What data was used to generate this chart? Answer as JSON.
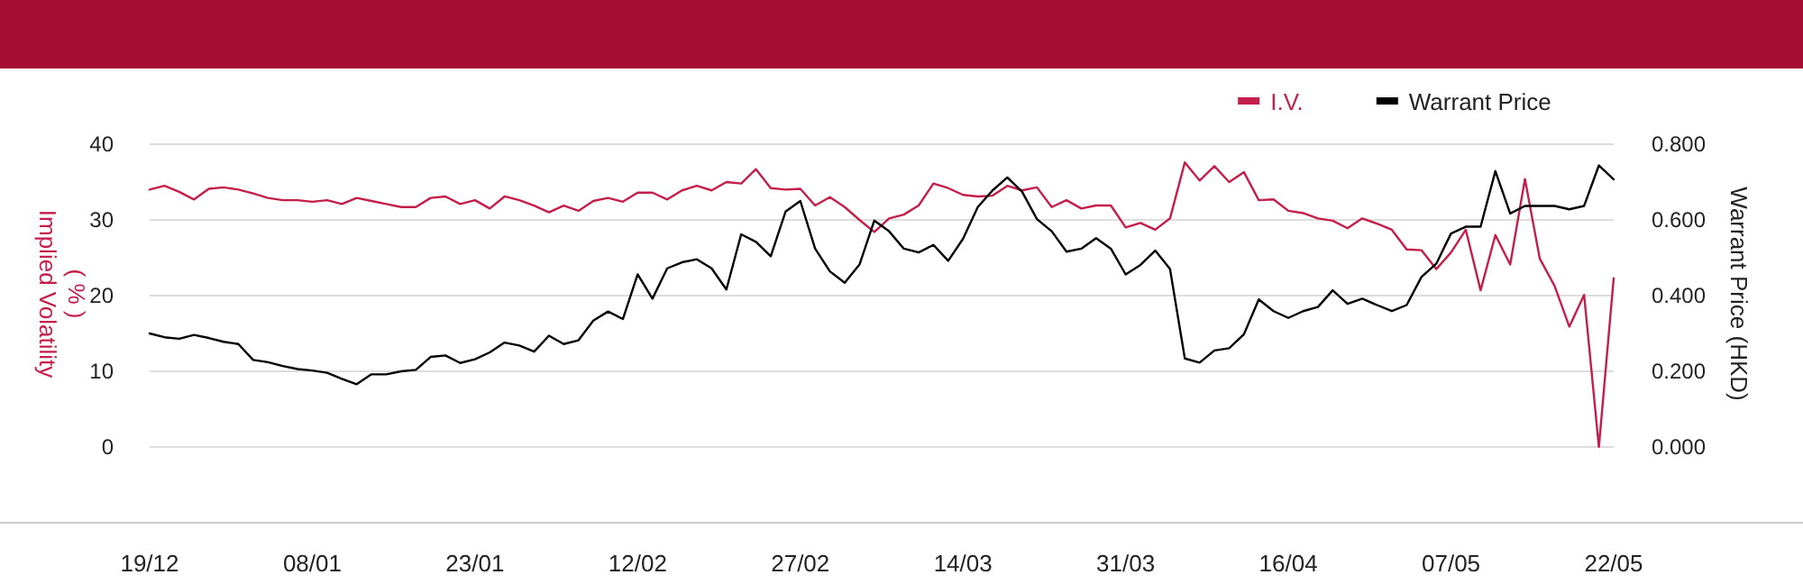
{
  "chart_data": {
    "type": "line",
    "categories": [
      "19/12",
      null,
      null,
      null,
      null,
      null,
      null,
      null,
      null,
      null,
      null,
      "08/01",
      null,
      null,
      null,
      null,
      null,
      null,
      null,
      null,
      null,
      null,
      "23/01",
      null,
      null,
      null,
      null,
      null,
      null,
      null,
      null,
      null,
      null,
      "12/02",
      null,
      null,
      null,
      null,
      null,
      null,
      null,
      null,
      null,
      null,
      "27/02",
      null,
      null,
      null,
      null,
      null,
      null,
      null,
      null,
      null,
      null,
      "14/03",
      null,
      null,
      null,
      null,
      null,
      null,
      null,
      null,
      null,
      null,
      "31/03",
      null,
      null,
      null,
      null,
      null,
      null,
      null,
      null,
      null,
      null,
      "16/04",
      null,
      null,
      null,
      null,
      null,
      null,
      null,
      null,
      null,
      null,
      "07/05",
      null,
      null,
      null,
      null,
      null,
      null,
      null,
      null,
      null,
      null,
      "22/05"
    ],
    "series": [
      {
        "name": "I.V.",
        "color": "#c41e4a",
        "values": [
          34.0,
          34.5,
          33.7,
          32.7,
          34.1,
          34.3,
          34.0,
          33.5,
          32.9,
          32.6,
          32.6,
          32.4,
          32.6,
          32.1,
          32.9,
          32.5,
          32.1,
          31.7,
          31.7,
          32.9,
          33.1,
          32.1,
          32.6,
          31.5,
          33.1,
          32.6,
          31.9,
          31.0,
          31.9,
          31.2,
          32.5,
          32.9,
          32.4,
          33.6,
          33.6,
          32.7,
          33.9,
          34.5,
          33.9,
          35.0,
          34.8,
          36.7,
          34.2,
          34.0,
          34.1,
          31.9,
          33.0,
          31.7,
          30.0,
          28.4,
          30.2,
          30.7,
          31.9,
          34.8,
          34.2,
          33.3,
          33.1,
          33.2,
          34.5,
          33.9,
          34.3,
          31.7,
          32.6,
          31.5,
          31.9,
          31.9,
          29.0,
          29.6,
          28.7,
          30.2,
          37.6,
          35.2,
          37.1,
          35.0,
          36.3,
          32.6,
          32.7,
          31.2,
          30.9,
          30.2,
          29.9,
          28.9,
          30.2,
          29.5,
          28.7,
          26.1,
          26.0,
          23.5,
          25.7,
          28.7,
          20.7,
          28.0,
          24.1,
          35.4,
          24.9,
          21.3,
          15.9,
          20.1,
          0.0,
          22.3
        ]
      },
      {
        "name": "Warrant Price",
        "color": "#000000",
        "axis": "y2",
        "values": [
          0.3,
          0.29,
          0.286,
          0.296,
          0.288,
          0.278,
          0.272,
          0.23,
          0.224,
          0.214,
          0.206,
          0.202,
          0.196,
          0.18,
          0.166,
          0.192,
          0.192,
          0.2,
          0.204,
          0.238,
          0.242,
          0.222,
          0.232,
          0.25,
          0.276,
          0.268,
          0.252,
          0.294,
          0.272,
          0.282,
          0.334,
          0.358,
          0.338,
          0.456,
          0.392,
          0.472,
          0.488,
          0.496,
          0.472,
          0.416,
          0.562,
          0.542,
          0.504,
          0.622,
          0.65,
          0.524,
          0.464,
          0.434,
          0.482,
          0.598,
          0.57,
          0.524,
          0.514,
          0.534,
          0.492,
          0.55,
          0.634,
          0.678,
          0.712,
          0.674,
          0.602,
          0.57,
          0.516,
          0.524,
          0.552,
          0.524,
          0.456,
          0.481,
          0.519,
          0.47,
          0.234,
          0.223,
          0.255,
          0.261,
          0.298,
          0.39,
          0.359,
          0.341,
          0.359,
          0.37,
          0.414,
          0.378,
          0.392,
          0.375,
          0.359,
          0.375,
          0.449,
          0.484,
          0.564,
          0.582,
          0.582,
          0.729,
          0.617,
          0.637,
          0.637,
          0.637,
          0.628,
          0.637,
          0.744,
          0.707
        ]
      }
    ],
    "ylabel": "Implied Volatility\n( % )",
    "y2label": "Warrant Price (HKD)",
    "ylim": [
      -10,
      40
    ],
    "yticks": [
      0,
      10,
      20,
      30,
      40
    ],
    "y2lim": [
      -0.2,
      0.8
    ],
    "y2ticks": [
      {
        "value": 0,
        "label": "0.000"
      },
      {
        "value": 0.2,
        "label": "0.200"
      },
      {
        "value": 0.4,
        "label": "0.400"
      },
      {
        "value": 0.6,
        "label": "0.600"
      },
      {
        "value": 0.8,
        "label": "0.800"
      }
    ],
    "grid": "y",
    "legend": "top right",
    "marker": "none",
    "line_style": "solid"
  }
}
